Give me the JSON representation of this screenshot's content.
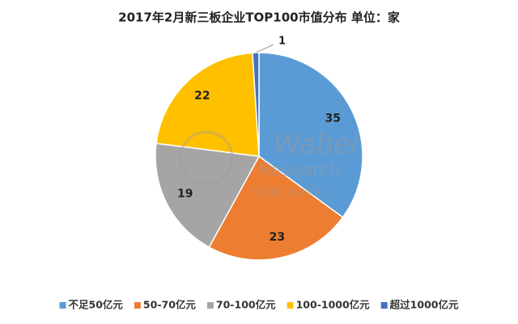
{
  "chart_data": {
    "type": "pie",
    "title": "2017年2月新三板企业TOP100市值分布 单位：家",
    "categories": [
      "不足50亿元",
      "50-70亿元",
      "70-100亿元",
      "100-1000亿元",
      "超过1000亿元"
    ],
    "values": [
      35,
      23,
      19,
      22,
      1
    ],
    "colors": [
      "#5b9bd5",
      "#ed7d31",
      "#a5a5a5",
      "#ffc000",
      "#4472c4"
    ],
    "legend": "bottom",
    "watermark": [
      "Wabei",
      "Research",
      "挖贝新三板研究院"
    ]
  }
}
